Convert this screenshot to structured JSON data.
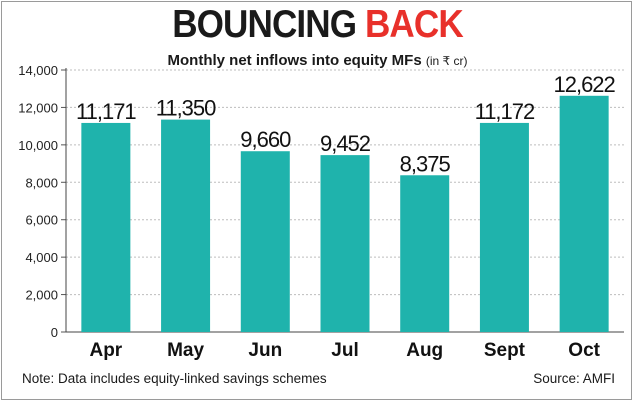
{
  "title": {
    "part1": "BOUNCING",
    "part2": "BACK",
    "accent_color": "#e8302a"
  },
  "subtitle": {
    "main": "Monthly net inflows into equity MFs",
    "unit": "(in ₹ cr)"
  },
  "chart_data": {
    "type": "bar",
    "categories": [
      "Apr",
      "May",
      "Jun",
      "Jul",
      "Aug",
      "Sept",
      "Oct"
    ],
    "values": [
      11171,
      11350,
      9660,
      9452,
      8375,
      11172,
      12622
    ],
    "value_labels": [
      "11,171",
      "11,350",
      "9,660",
      "9,452",
      "8,375",
      "11,172",
      "12,622"
    ],
    "ylim": [
      0,
      14000
    ],
    "yticks": [
      0,
      2000,
      4000,
      6000,
      8000,
      10000,
      12000,
      14000
    ],
    "ytick_labels": [
      "0",
      "2,000",
      "4,000",
      "6,000",
      "8,000",
      "10,000",
      "12,000",
      "14,000"
    ],
    "grid": true,
    "bar_color": "#1fb3ac"
  },
  "footer": {
    "note": "Note: Data includes equity-linked savings schemes",
    "source": "Source: AMFI"
  }
}
